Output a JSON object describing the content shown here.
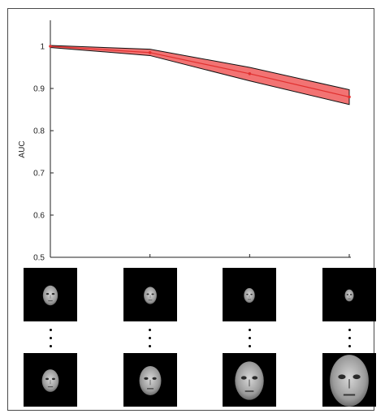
{
  "chart_data": {
    "type": "line",
    "title": "",
    "xlabel": "",
    "ylabel": "AUC",
    "ylim": [
      0.5,
      1.05
    ],
    "yticks": [
      0.5,
      0.6,
      0.7,
      0.8,
      0.9,
      1
    ],
    "ytick_labels": [
      "0.5",
      "0.6",
      "0.7",
      "0.8",
      "0.9",
      "1"
    ],
    "x": [
      1,
      2,
      3,
      4
    ],
    "series": [
      {
        "values": [
          1.0,
          0.985,
          0.935,
          0.88
        ],
        "lower": [
          0.997,
          0.978,
          0.918,
          0.862
        ],
        "upper": [
          1.002,
          0.993,
          0.95,
          0.897
        ]
      }
    ],
    "colors": {
      "band": "#f05a5a",
      "line": "#e0302f",
      "outline": "#111111"
    },
    "grid": false
  },
  "images": {
    "top_row_face_scale": [
      0.3,
      0.26,
      0.22,
      0.18
    ],
    "bottom_row_face_scale": [
      0.34,
      0.44,
      0.58,
      0.78
    ]
  }
}
